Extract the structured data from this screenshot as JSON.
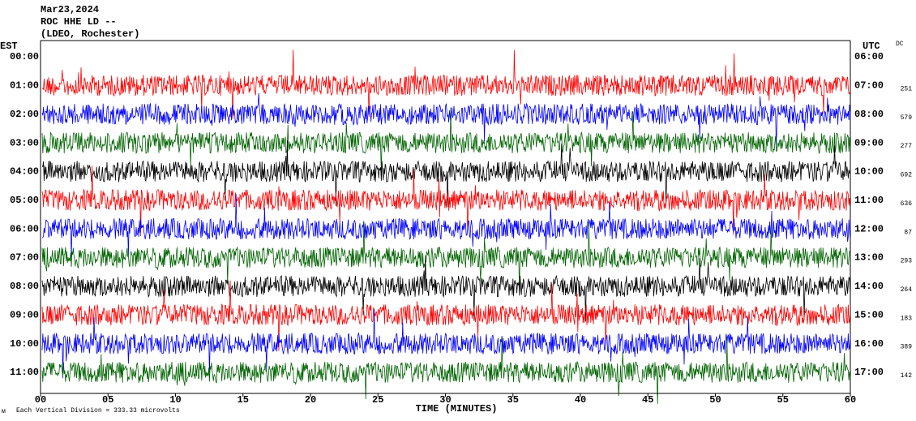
{
  "chart_data": {
    "type": "helicorder",
    "title": "Mar23,2024",
    "subtitle": "ROC HHE LD --",
    "station": "(LDEO, Rochester)",
    "left_axis_label": "EST",
    "right_axis_label": "UTC",
    "dc_label": "DC",
    "xlabel": "TIME (MINUTES)",
    "scale_note": "Each Vertical Division =  333.33 microvolts",
    "xlim": [
      0,
      60
    ],
    "xticks": [
      {
        "value": 0,
        "label": "00"
      },
      {
        "value": 5,
        "label": "05"
      },
      10,
      15,
      20,
      25,
      30,
      35,
      40,
      45,
      50,
      55,
      60
    ],
    "rows_est": [
      "00:00",
      "01:00",
      "02:00",
      "03:00",
      "04:00",
      "05:00",
      "06:00",
      "07:00",
      "08:00",
      "09:00",
      "10:00",
      "11:00"
    ],
    "rows_utc": [
      "06:00",
      "07:00",
      "08:00",
      "09:00",
      "10:00",
      "11:00",
      "12:00",
      "13:00",
      "14:00",
      "15:00",
      "16:00",
      "17:00"
    ],
    "dc": [
      null,
      251,
      579,
      277,
      692,
      636,
      87,
      293,
      264,
      183,
      389,
      142
    ],
    "trace_colors": [
      null,
      "#ff0000",
      "#0000ff",
      "#006400",
      "#000000",
      "#ff0000",
      "#0000ff",
      "#006400",
      "#000000",
      "#ff0000",
      "#0000ff",
      "#006400"
    ]
  }
}
